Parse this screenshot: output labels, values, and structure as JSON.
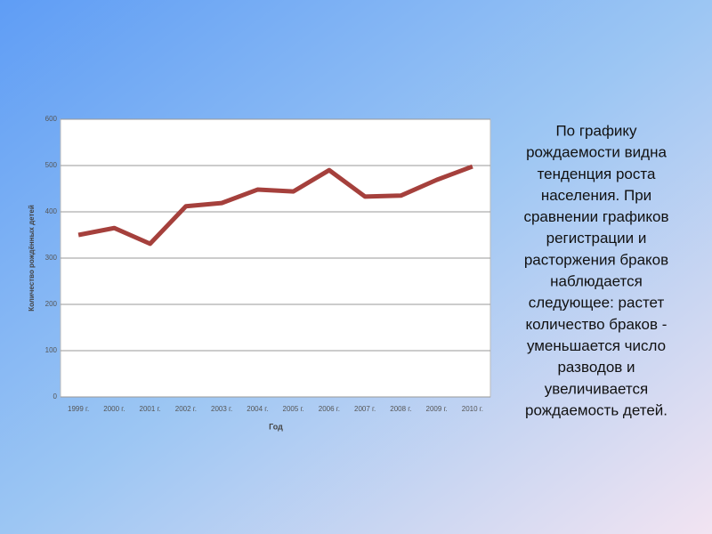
{
  "chart_data": {
    "type": "line",
    "x_label": "Год",
    "y_label": "Количество рождённых детей",
    "categories": [
      "1999 г.",
      "2000 г.",
      "2001 г.",
      "2002 г.",
      "2003 г.",
      "2004 г.",
      "2005 г.",
      "2006 г.",
      "2007 г.",
      "2008 г.",
      "2009 г.",
      "2010 г."
    ],
    "values": [
      350,
      365,
      331,
      412,
      419,
      448,
      444,
      490,
      433,
      435,
      469,
      498
    ],
    "color": "#a5403c",
    "ylim": [
      0,
      600
    ],
    "yticks": [
      0,
      100,
      200,
      300,
      400,
      500,
      600
    ],
    "grid": true
  },
  "text": {
    "lines": [
      "По графику",
      "рождаемости видна",
      "тенденция роста",
      "населения. При",
      "сравнении графиков",
      "регистрации и",
      "расторжения браков",
      "наблюдается",
      "следующее: растет",
      "количество браков -",
      "уменьшается число",
      "разводов и",
      "увеличивается",
      "рождаемость детей."
    ]
  }
}
